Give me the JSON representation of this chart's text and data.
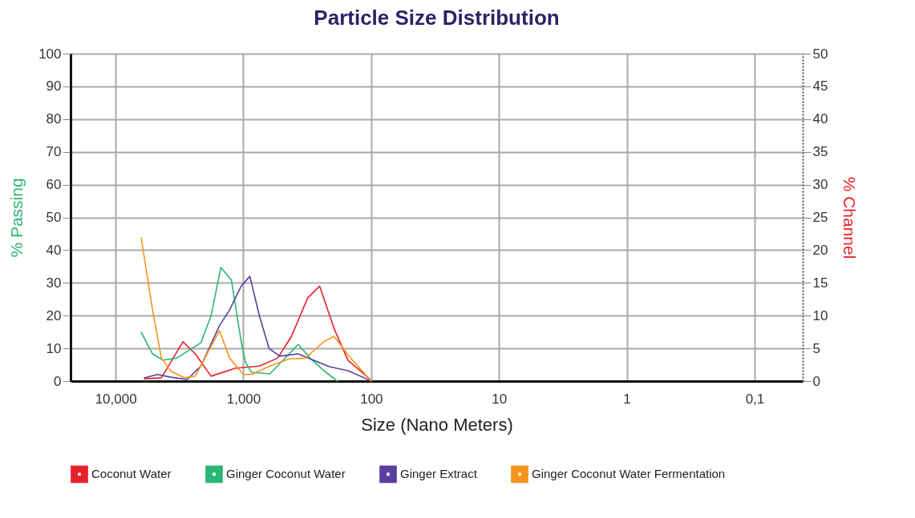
{
  "chart_data": {
    "type": "line",
    "title": "Particle Size Distribution",
    "xlabel": "Size (Nano Meters)",
    "ylabel": "% Passing",
    "y2label": "% Channel",
    "log": "x",
    "xlim": [
      22500,
      0.042
    ],
    "xticks": [
      {
        "value": 10000,
        "label": "10,000"
      },
      {
        "value": 1000,
        "label": "1,000"
      },
      100,
      10,
      1,
      {
        "value": 0.1,
        "label": "0,1"
      }
    ],
    "ylim": [
      0,
      100
    ],
    "yticks": [
      0,
      10,
      20,
      30,
      40,
      50,
      60,
      70,
      80,
      90,
      100
    ],
    "y2lim": [
      0,
      50
    ],
    "y2ticks": [
      0,
      5,
      10,
      15,
      20,
      25,
      30,
      35,
      40,
      45,
      50
    ],
    "grid": true,
    "legend": "bottom",
    "line_style": "solid",
    "series": [
      {
        "name": "Coconut Water",
        "color": "#e8202a",
        "x": [
          5940,
          4380,
          2970,
          2380,
          1790,
          1160,
          750,
          540,
          420,
          314,
          253,
          195,
          152,
          103
        ],
        "values": [
          0.7,
          1,
          12,
          8.3,
          1.5,
          3.9,
          4.6,
          7,
          13.7,
          25.4,
          29,
          16,
          6.4,
          0.7
        ]
      },
      {
        "name": "Ginger Coconut Water",
        "color": "#2bb673",
        "x": [
          6300,
          5140,
          4250,
          3330,
          2150,
          1790,
          1500,
          1240,
          1040,
          960,
          865,
          620,
          373,
          300,
          235,
          184
        ],
        "values": [
          14.9,
          8.3,
          6.4,
          7,
          11.7,
          20,
          34.7,
          30.8,
          12,
          5.6,
          2.7,
          2.2,
          11.2,
          7,
          3.2,
          0
        ]
      },
      {
        "name": "Ginger Extract",
        "color": "#5b3fa0",
        "x": [
          5940,
          4710,
          3680,
          2750,
          2150,
          1540,
          1280,
          1040,
          890,
          750,
          630,
          520,
          373,
          300,
          212,
          152,
          109,
          100
        ],
        "values": [
          1,
          2,
          1.2,
          0.5,
          4.6,
          16.9,
          21.8,
          29,
          32,
          20,
          10,
          7.6,
          8.3,
          6.8,
          4.4,
          3.2,
          0.7,
          0
        ]
      },
      {
        "name": "Ginger Coconut Water Fermentation",
        "color": "#f7941d",
        "x": [
          6300,
          5140,
          4380,
          3680,
          2880,
          2380,
          1540,
          1280,
          1000,
          865,
          620,
          438,
          328,
          235,
          195,
          152,
          100
        ],
        "values": [
          43.8,
          21.8,
          7,
          3,
          1,
          1.5,
          15.4,
          7,
          2,
          2,
          4.6,
          6.8,
          7,
          12,
          13.7,
          8,
          0
        ]
      }
    ]
  }
}
